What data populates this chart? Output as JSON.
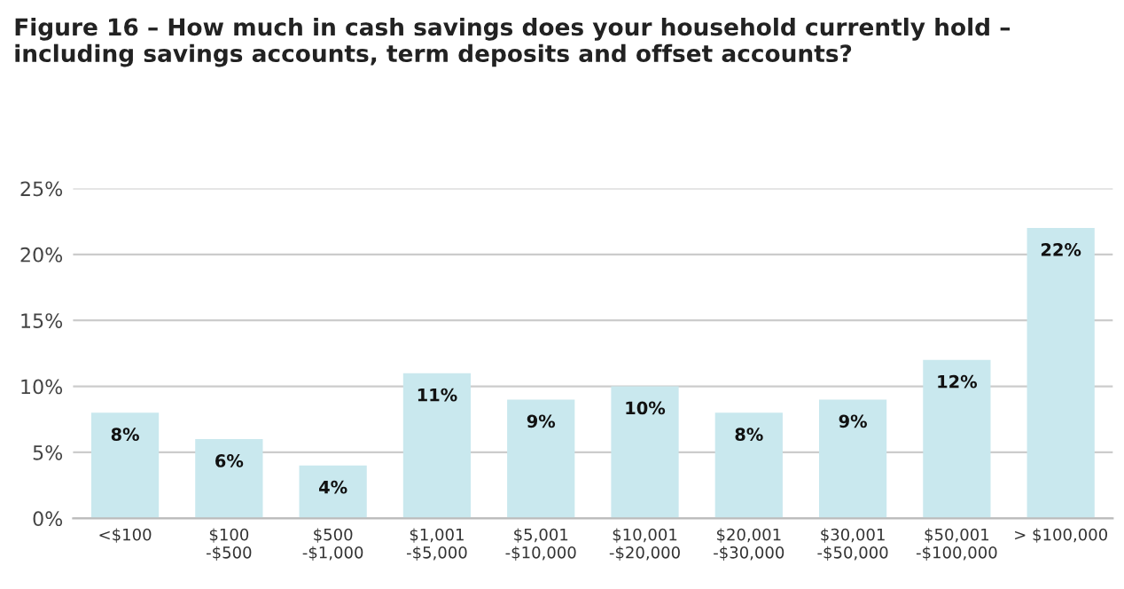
{
  "chart_data": {
    "type": "bar",
    "title": "Figure 16 – How much in cash savings does your household currently hold – including savings accounts, term deposits and offset accounts?",
    "categories": [
      "<$100",
      "$100\n-$500",
      "$500\n-$1,000",
      "$1,001\n-$5,000",
      "$5,001\n-$10,000",
      "$10,001\n-$20,000",
      "$20,001\n-$30,000",
      "$30,001\n-$50,000",
      "$50,001\n-$100,000",
      "> $100,000"
    ],
    "values": [
      8,
      6,
      4,
      11,
      9,
      10,
      8,
      9,
      12,
      22
    ],
    "value_labels": [
      "8%",
      "6%",
      "4%",
      "11%",
      "9%",
      "10%",
      "8%",
      "9%",
      "12%",
      "22%"
    ],
    "color": "#c9e8ee",
    "ylim": [
      0,
      25
    ],
    "yticks": [
      {
        "value": 0,
        "label": "0%"
      },
      {
        "value": 5,
        "label": "5%"
      },
      {
        "value": 10,
        "label": "10%"
      },
      {
        "value": 15,
        "label": "15%"
      },
      {
        "value": 20,
        "label": "20%"
      },
      {
        "value": 25,
        "label": "25%"
      }
    ],
    "grid": "y"
  }
}
